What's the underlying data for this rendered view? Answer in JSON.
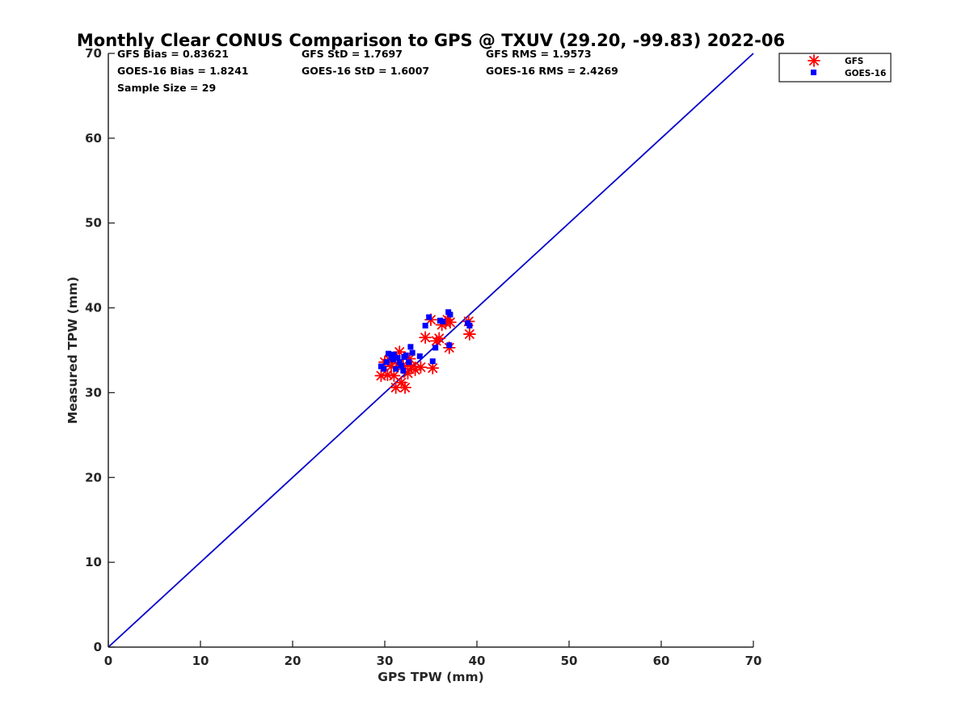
{
  "chart_data": {
    "type": "scatter",
    "title": "Monthly Clear CONUS Comparison to GPS @ TXUV (29.20, -99.83) 2022-06",
    "xlabel": "GPS TPW (mm)",
    "ylabel": "Measured TPW (mm)",
    "xlim": [
      0,
      70
    ],
    "ylim": [
      0,
      70
    ],
    "xticks": [
      0,
      10,
      20,
      30,
      40,
      50,
      60,
      70
    ],
    "yticks": [
      0,
      10,
      20,
      30,
      40,
      50,
      60,
      70
    ],
    "grid": false,
    "legend_position": "outside-top-right",
    "stats": {
      "gfs_bias": "GFS Bias = 0.83621",
      "gfs_std": "GFS StD = 1.7697",
      "gfs_rms": "GFS RMS = 1.9573",
      "goes_bias": "GOES-16 Bias = 1.8241",
      "goes_std": "GOES-16 StD = 1.6007",
      "goes_rms": "GOES-16 RMS = 2.4269",
      "sample_size": "Sample Size = 29"
    },
    "reference_line": {
      "name": "1:1 line",
      "x": [
        0,
        70
      ],
      "y": [
        0,
        70
      ],
      "color": "#0000cc"
    },
    "series": [
      {
        "name": "GFS",
        "marker": "asterisk",
        "color": "#ff0000",
        "points": [
          [
            29.6,
            32.0
          ],
          [
            30.0,
            33.6
          ],
          [
            30.3,
            32.1
          ],
          [
            30.7,
            33.1
          ],
          [
            31.0,
            32.0
          ],
          [
            31.2,
            30.6
          ],
          [
            31.4,
            33.4
          ],
          [
            31.6,
            34.8
          ],
          [
            31.8,
            31.2
          ],
          [
            32.0,
            33.2
          ],
          [
            32.2,
            30.6
          ],
          [
            32.5,
            32.3
          ],
          [
            32.9,
            33.1
          ],
          [
            33.3,
            32.7
          ],
          [
            33.9,
            33.0
          ],
          [
            34.4,
            36.5
          ],
          [
            35.0,
            38.6
          ],
          [
            35.2,
            32.9
          ],
          [
            35.6,
            36.1
          ],
          [
            35.9,
            36.4
          ],
          [
            36.2,
            38.0
          ],
          [
            36.6,
            38.3
          ],
          [
            36.8,
            38.6
          ],
          [
            37.0,
            35.3
          ],
          [
            37.1,
            38.3
          ],
          [
            39.1,
            38.4
          ],
          [
            39.2,
            36.9
          ],
          [
            30.5,
            33.9
          ],
          [
            32.7,
            34.0
          ]
        ]
      },
      {
        "name": "GOES-16",
        "marker": "square",
        "color": "#0000ff",
        "points": [
          [
            29.6,
            33.1
          ],
          [
            29.9,
            32.8
          ],
          [
            30.2,
            33.6
          ],
          [
            30.4,
            34.6
          ],
          [
            30.7,
            34.2
          ],
          [
            30.9,
            33.9
          ],
          [
            31.2,
            32.8
          ],
          [
            31.4,
            34.1
          ],
          [
            31.6,
            33.6
          ],
          [
            31.8,
            33.2
          ],
          [
            32.0,
            32.6
          ],
          [
            32.1,
            34.2
          ],
          [
            32.3,
            34.4
          ],
          [
            32.6,
            33.6
          ],
          [
            32.8,
            35.4
          ],
          [
            33.0,
            34.7
          ],
          [
            33.8,
            34.3
          ],
          [
            34.4,
            37.9
          ],
          [
            34.8,
            38.9
          ],
          [
            35.2,
            33.7
          ],
          [
            35.5,
            35.3
          ],
          [
            36.0,
            38.5
          ],
          [
            36.3,
            38.4
          ],
          [
            36.9,
            39.5
          ],
          [
            37.0,
            35.6
          ],
          [
            37.1,
            39.2
          ],
          [
            39.0,
            38.2
          ],
          [
            39.2,
            37.9
          ],
          [
            31.0,
            34.5
          ]
        ]
      }
    ]
  }
}
